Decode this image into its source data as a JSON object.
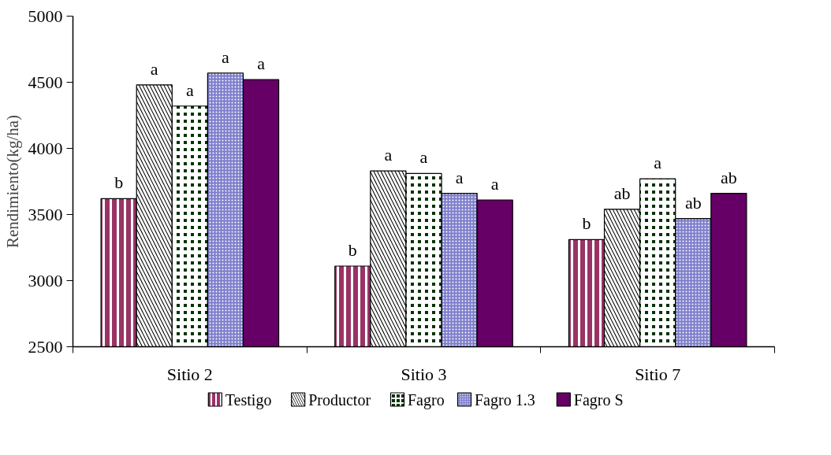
{
  "chart_data": {
    "type": "bar",
    "ylabel": "Rendimiento(kg/ha)",
    "categories": [
      "Sitio 2",
      "Sitio 3",
      "Sitio 7"
    ],
    "ylim": [
      2500,
      5000
    ],
    "yticks": [
      2500,
      3000,
      3500,
      4000,
      4500,
      5000
    ],
    "grid": false,
    "legend": "bottom",
    "series": [
      {
        "name": "Testigo",
        "color": "#993366",
        "values": [
          3620,
          3110,
          3310
        ],
        "value_labels": [
          "b",
          "b",
          "b"
        ]
      },
      {
        "name": "Productor",
        "color": "#000000",
        "values": [
          4480,
          3830,
          3540
        ],
        "value_labels": [
          "a",
          "a",
          "ab"
        ]
      },
      {
        "name": "Fagro",
        "color": "#003300",
        "values": [
          4320,
          3810,
          3770
        ],
        "value_labels": [
          "a",
          "a",
          "a"
        ]
      },
      {
        "name": "Fagro 1.3",
        "color": "#7f7fcc",
        "values": [
          4570,
          3660,
          3470
        ],
        "value_labels": [
          "a",
          "a",
          "ab"
        ]
      },
      {
        "name": "Fagro S",
        "color": "#660066",
        "values": [
          4520,
          3610,
          3660
        ],
        "value_labels": [
          "a",
          "a",
          "ab"
        ]
      }
    ]
  }
}
